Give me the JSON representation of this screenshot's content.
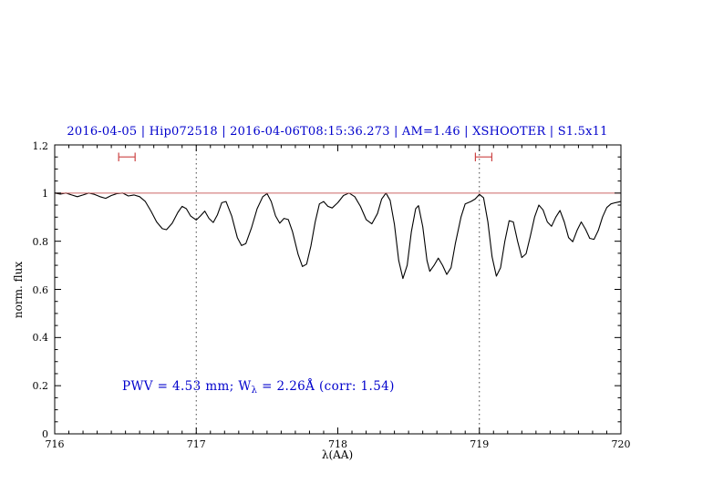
{
  "page": {
    "background": "#ffffff"
  },
  "chart_data": {
    "type": "line",
    "title": "2016-04-05 | Hip072518 | 2016-04-06T08:15:36.273 | AM=1.46 | XSHOOTER | S1.5x11",
    "xlabel": "λ(AA)",
    "ylabel": "norm. flux",
    "xlim": [
      716,
      720
    ],
    "ylim": [
      0,
      1.2
    ],
    "x_ticks": [
      716,
      717,
      718,
      719,
      720
    ],
    "y_ticks": [
      0,
      0.2,
      0.4,
      0.6,
      0.8,
      1,
      1.2
    ],
    "x_minor_step": 0.1,
    "y_minor_step": 0.05,
    "grid": "off",
    "legend": "none",
    "vlines": [
      717,
      719
    ],
    "hline": 1.0,
    "annotation": {
      "prefix": "PWV = 4.53 mm; W",
      "sub": "λ",
      "suffix": " = 2.26Å (corr: 1.54)"
    },
    "markers": [
      {
        "x_center": 716.51,
        "half_width": 0.058,
        "y": 1.15,
        "cap_half_height": 0.018
      },
      {
        "x_center": 719.03,
        "half_width": 0.058,
        "y": 1.15,
        "cap_half_height": 0.018
      }
    ],
    "colors": {
      "title": "#0000cc",
      "annotation": "#0000cc",
      "spectrum": "#000000",
      "unity_line": "#cc6666",
      "marker": "#cc4444",
      "dotted": "#444444",
      "axis": "#000000"
    },
    "series": [
      {
        "name": "telluric spectrum",
        "color": "#000000",
        "points": [
          [
            716.0,
            1.0
          ],
          [
            716.04,
            0.996
          ],
          [
            716.08,
            1.0
          ],
          [
            716.12,
            0.992
          ],
          [
            716.16,
            0.985
          ],
          [
            716.2,
            0.992
          ],
          [
            716.24,
            1.0
          ],
          [
            716.28,
            0.995
          ],
          [
            716.32,
            0.985
          ],
          [
            716.36,
            0.978
          ],
          [
            716.4,
            0.99
          ],
          [
            716.44,
            0.998
          ],
          [
            716.48,
            1.0
          ],
          [
            716.52,
            0.988
          ],
          [
            716.56,
            0.992
          ],
          [
            716.6,
            0.985
          ],
          [
            716.64,
            0.965
          ],
          [
            716.68,
            0.925
          ],
          [
            716.72,
            0.88
          ],
          [
            716.76,
            0.852
          ],
          [
            716.79,
            0.848
          ],
          [
            716.83,
            0.875
          ],
          [
            716.87,
            0.92
          ],
          [
            716.9,
            0.945
          ],
          [
            716.93,
            0.935
          ],
          [
            716.96,
            0.905
          ],
          [
            717.0,
            0.888
          ],
          [
            717.03,
            0.905
          ],
          [
            717.06,
            0.925
          ],
          [
            717.09,
            0.895
          ],
          [
            717.12,
            0.878
          ],
          [
            717.15,
            0.91
          ],
          [
            717.18,
            0.96
          ],
          [
            717.21,
            0.965
          ],
          [
            717.25,
            0.905
          ],
          [
            717.29,
            0.815
          ],
          [
            717.32,
            0.782
          ],
          [
            717.35,
            0.79
          ],
          [
            717.39,
            0.855
          ],
          [
            717.43,
            0.935
          ],
          [
            717.47,
            0.985
          ],
          [
            717.5,
            0.998
          ],
          [
            717.53,
            0.965
          ],
          [
            717.56,
            0.905
          ],
          [
            717.59,
            0.875
          ],
          [
            717.62,
            0.895
          ],
          [
            717.65,
            0.89
          ],
          [
            717.68,
            0.84
          ],
          [
            717.72,
            0.745
          ],
          [
            717.75,
            0.695
          ],
          [
            717.78,
            0.705
          ],
          [
            717.81,
            0.78
          ],
          [
            717.84,
            0.88
          ],
          [
            717.87,
            0.955
          ],
          [
            717.9,
            0.965
          ],
          [
            717.93,
            0.945
          ],
          [
            717.96,
            0.938
          ],
          [
            718.0,
            0.96
          ],
          [
            718.04,
            0.99
          ],
          [
            718.08,
            1.0
          ],
          [
            718.12,
            0.985
          ],
          [
            718.16,
            0.945
          ],
          [
            718.2,
            0.89
          ],
          [
            718.24,
            0.872
          ],
          [
            718.28,
            0.915
          ],
          [
            718.31,
            0.975
          ],
          [
            718.34,
            1.0
          ],
          [
            718.37,
            0.97
          ],
          [
            718.4,
            0.87
          ],
          [
            718.43,
            0.72
          ],
          [
            718.46,
            0.645
          ],
          [
            718.49,
            0.7
          ],
          [
            718.52,
            0.84
          ],
          [
            718.55,
            0.935
          ],
          [
            718.57,
            0.948
          ],
          [
            718.6,
            0.86
          ],
          [
            718.63,
            0.72
          ],
          [
            718.65,
            0.675
          ],
          [
            718.68,
            0.7
          ],
          [
            718.71,
            0.73
          ],
          [
            718.74,
            0.7
          ],
          [
            718.77,
            0.662
          ],
          [
            718.8,
            0.69
          ],
          [
            718.83,
            0.79
          ],
          [
            718.87,
            0.9
          ],
          [
            718.9,
            0.955
          ],
          [
            718.94,
            0.965
          ],
          [
            718.97,
            0.975
          ],
          [
            719.0,
            0.995
          ],
          [
            719.03,
            0.98
          ],
          [
            719.06,
            0.88
          ],
          [
            719.09,
            0.735
          ],
          [
            719.12,
            0.655
          ],
          [
            719.15,
            0.69
          ],
          [
            719.18,
            0.8
          ],
          [
            719.21,
            0.885
          ],
          [
            719.24,
            0.88
          ],
          [
            719.27,
            0.8
          ],
          [
            719.3,
            0.732
          ],
          [
            719.33,
            0.748
          ],
          [
            719.36,
            0.82
          ],
          [
            719.39,
            0.9
          ],
          [
            719.42,
            0.95
          ],
          [
            719.45,
            0.93
          ],
          [
            719.48,
            0.88
          ],
          [
            719.51,
            0.862
          ],
          [
            719.54,
            0.9
          ],
          [
            719.57,
            0.928
          ],
          [
            719.6,
            0.88
          ],
          [
            719.63,
            0.815
          ],
          [
            719.66,
            0.798
          ],
          [
            719.69,
            0.845
          ],
          [
            719.72,
            0.88
          ],
          [
            719.75,
            0.85
          ],
          [
            719.78,
            0.812
          ],
          [
            719.81,
            0.808
          ],
          [
            719.84,
            0.845
          ],
          [
            719.87,
            0.9
          ],
          [
            719.9,
            0.94
          ],
          [
            719.93,
            0.955
          ],
          [
            719.96,
            0.96
          ],
          [
            720.0,
            0.965
          ]
        ]
      }
    ]
  }
}
